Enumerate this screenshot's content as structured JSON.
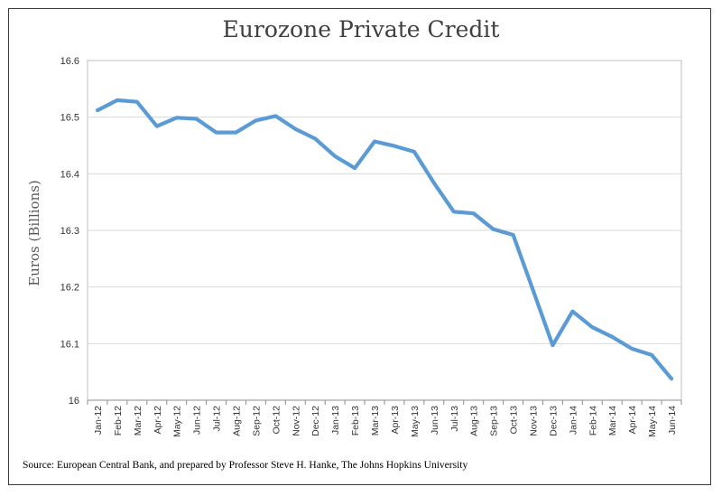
{
  "chart_data": {
    "type": "line",
    "title": "Eurozone Private Credit",
    "xlabel": "",
    "ylabel": "Euros (Billions)",
    "ylim": [
      16,
      16.6
    ],
    "yticks": [
      "16",
      "16.1",
      "16.2",
      "16.3",
      "16.4",
      "16.5",
      "16.6"
    ],
    "grid": true,
    "line_color": "#5b9bd5",
    "categories": [
      "Jan-12",
      "Feb-12",
      "Mar-12",
      "Apr-12",
      "May-12",
      "Jun-12",
      "Jul-12",
      "Aug-12",
      "Sep-12",
      "Oct-12",
      "Nov-12",
      "Dec-12",
      "Jan-13",
      "Feb-13",
      "Mar-13",
      "Apr-13",
      "May-13",
      "Jun-13",
      "Jul-13",
      "Aug-13",
      "Sep-13",
      "Oct-13",
      "Nov-13",
      "Dec-13",
      "Jan-14",
      "Feb-14",
      "Mar-14",
      "Apr-14",
      "May-14",
      "Jun-14"
    ],
    "series": [
      {
        "name": "Eurozone Private Credit",
        "values": [
          16.512,
          16.53,
          16.527,
          16.484,
          16.499,
          16.497,
          16.473,
          16.473,
          16.494,
          16.502,
          16.479,
          16.462,
          16.431,
          16.41,
          16.457,
          16.449,
          16.439,
          16.384,
          16.333,
          16.33,
          16.302,
          16.292,
          16.195,
          16.097,
          16.157,
          16.129,
          16.112,
          16.091,
          16.08,
          16.038
        ]
      }
    ]
  },
  "source": "Source: European Central Bank, and prepared by Professor Steve H. Hanke, The Johns Hopkins University"
}
